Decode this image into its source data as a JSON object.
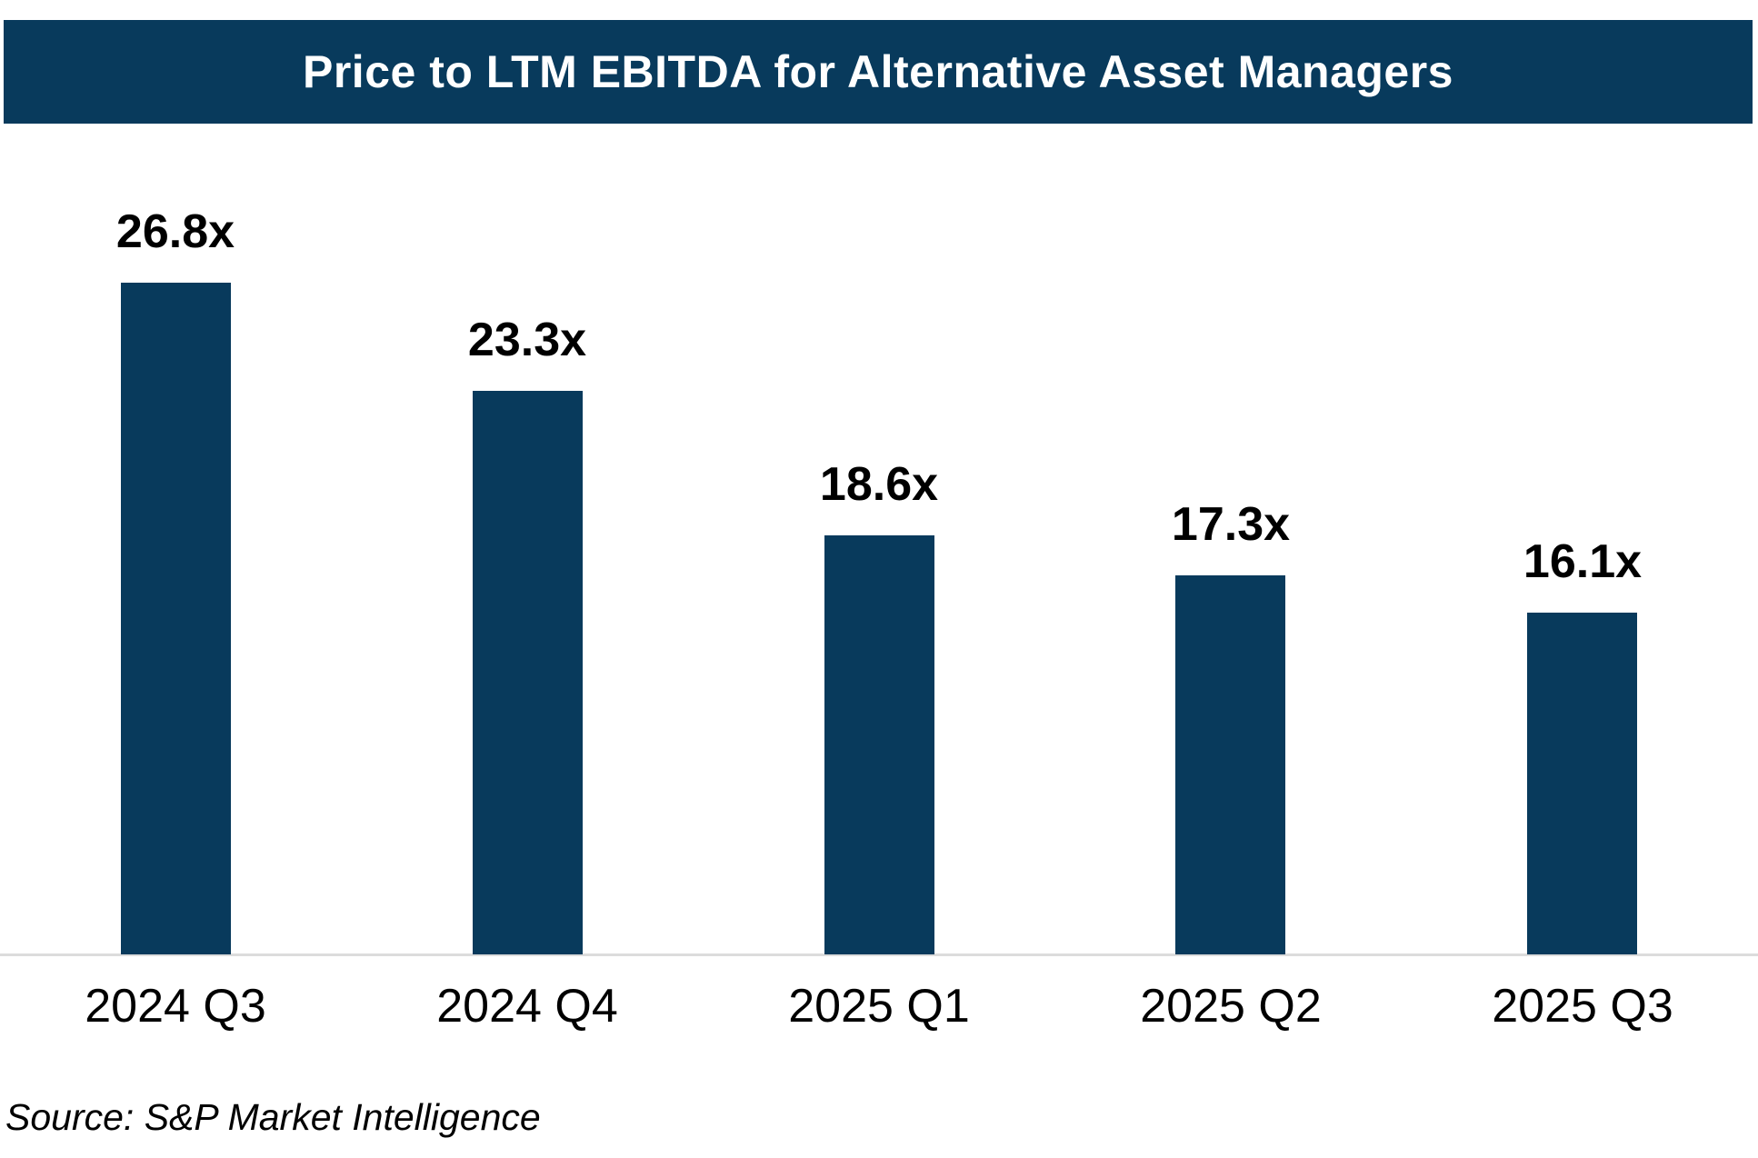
{
  "title_bar": {
    "title": "Price to LTM EBITDA for Alternative Asset Managers",
    "background": "#083A5C",
    "text_color": "#FFFFFF"
  },
  "source_note": "Source: S&P Market Intelligence",
  "chart_data": {
    "type": "bar",
    "title": "Price to LTM EBITDA for Alternative Asset Managers",
    "categories": [
      "2024 Q3",
      "2024 Q4",
      "2025 Q1",
      "2025 Q2",
      "2025 Q3"
    ],
    "values": [
      26.8,
      23.3,
      18.6,
      17.3,
      16.1
    ],
    "data_labels": [
      "26.8x",
      "23.3x",
      "18.6x",
      "17.3x",
      "16.1x"
    ],
    "xlabel": "",
    "ylabel": "",
    "ylim": [
      5,
      30
    ],
    "grid": false,
    "legend": false,
    "bar_color": "#083A5C",
    "axis_line_color": "#DCDCDC",
    "label_color": "#000000",
    "source": "Source: S&P Market Intelligence"
  }
}
